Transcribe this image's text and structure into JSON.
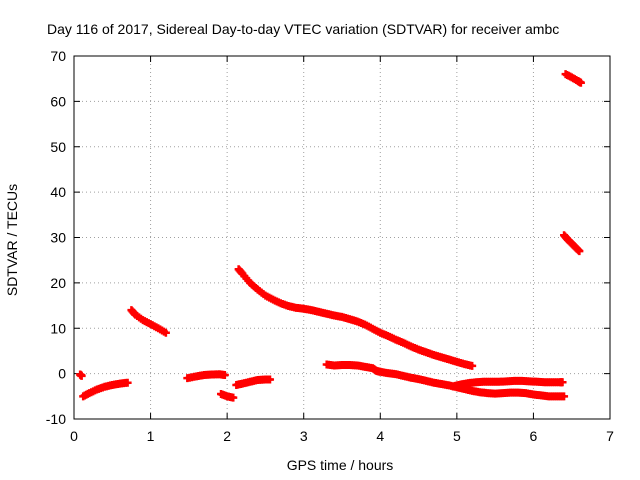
{
  "chart_data": {
    "type": "scatter",
    "title": "Day 116 of 2017, Sidereal Day-to-day VTEC variation (SDTVAR) for receiver ambc",
    "xlabel": "GPS time / hours",
    "ylabel": "SDTVAR / TECUs",
    "xlim": [
      0,
      7
    ],
    "ylim": [
      -10,
      70
    ],
    "xticks": [
      "0",
      "1",
      "2",
      "3",
      "4",
      "5",
      "6",
      "7"
    ],
    "yticks": [
      "-10",
      "0",
      "10",
      "20",
      "30",
      "40",
      "50",
      "60",
      "70"
    ],
    "grid": true,
    "marker": "plus",
    "color": "#ff0000",
    "series": [
      {
        "name": "seg1",
        "points": [
          [
            0.08,
            -0.2
          ],
          [
            0.1,
            -0.5
          ]
        ]
      },
      {
        "name": "seg2",
        "points": [
          [
            0.12,
            -5
          ],
          [
            0.2,
            -4.3
          ],
          [
            0.3,
            -3.5
          ],
          [
            0.4,
            -2.9
          ],
          [
            0.5,
            -2.5
          ],
          [
            0.6,
            -2.2
          ],
          [
            0.7,
            -2.0
          ]
        ]
      },
      {
        "name": "seg3",
        "points": [
          [
            0.75,
            14
          ],
          [
            0.8,
            13
          ],
          [
            0.9,
            11.8
          ],
          [
            1.0,
            10.9
          ],
          [
            1.1,
            10.0
          ],
          [
            1.2,
            9.0
          ]
        ]
      },
      {
        "name": "seg4",
        "points": [
          [
            1.48,
            -1.0
          ],
          [
            1.6,
            -0.6
          ],
          [
            1.7,
            -0.3
          ],
          [
            1.8,
            -0.2
          ],
          [
            1.9,
            -0.15
          ],
          [
            1.97,
            -0.3
          ]
        ]
      },
      {
        "name": "seg5",
        "points": [
          [
            1.92,
            -4.5
          ],
          [
            2.0,
            -5.0
          ],
          [
            2.08,
            -5.3
          ]
        ]
      },
      {
        "name": "seg6",
        "points": [
          [
            2.12,
            -2.5
          ],
          [
            2.2,
            -2.2
          ],
          [
            2.3,
            -1.8
          ],
          [
            2.4,
            -1.4
          ],
          [
            2.5,
            -1.3
          ],
          [
            2.56,
            -1.3
          ]
        ]
      },
      {
        "name": "seg7",
        "points": [
          [
            2.15,
            23
          ],
          [
            2.2,
            22
          ],
          [
            2.3,
            20
          ],
          [
            2.4,
            18.5
          ],
          [
            2.5,
            17.2
          ],
          [
            2.6,
            16.3
          ],
          [
            2.7,
            15.5
          ],
          [
            2.8,
            14.9
          ],
          [
            2.9,
            14.5
          ],
          [
            3.0,
            14.3
          ],
          [
            3.1,
            14.0
          ],
          [
            3.2,
            13.6
          ],
          [
            3.3,
            13.2
          ],
          [
            3.4,
            12.8
          ],
          [
            3.5,
            12.5
          ],
          [
            3.6,
            12.0
          ],
          [
            3.7,
            11.5
          ],
          [
            3.8,
            10.8
          ],
          [
            3.9,
            9.9
          ],
          [
            4.0,
            9.0
          ],
          [
            4.1,
            8.3
          ],
          [
            4.2,
            7.5
          ],
          [
            4.3,
            6.8
          ],
          [
            4.4,
            6.0
          ],
          [
            4.5,
            5.3
          ],
          [
            4.6,
            4.7
          ],
          [
            4.7,
            4.1
          ],
          [
            4.8,
            3.6
          ],
          [
            4.9,
            3.1
          ],
          [
            5.0,
            2.6
          ],
          [
            5.1,
            2.1
          ],
          [
            5.2,
            1.7
          ]
        ]
      },
      {
        "name": "seg8",
        "points": [
          [
            3.3,
            2.0
          ],
          [
            3.4,
            1.8
          ],
          [
            3.5,
            1.9
          ],
          [
            3.6,
            1.9
          ],
          [
            3.7,
            1.8
          ],
          [
            3.8,
            1.5
          ],
          [
            3.9,
            1.2
          ],
          [
            3.95,
            0.6
          ],
          [
            4.0,
            0.4
          ],
          [
            4.1,
            0.1
          ],
          [
            4.2,
            -0.1
          ],
          [
            4.3,
            -0.5
          ],
          [
            4.4,
            -0.9
          ],
          [
            4.5,
            -1.2
          ],
          [
            4.6,
            -1.6
          ],
          [
            4.7,
            -2.0
          ],
          [
            4.8,
            -2.3
          ],
          [
            4.9,
            -2.6
          ],
          [
            5.0,
            -3.0
          ],
          [
            5.1,
            -3.4
          ],
          [
            5.2,
            -3.8
          ],
          [
            5.3,
            -4.1
          ],
          [
            5.4,
            -4.3
          ],
          [
            5.5,
            -4.4
          ],
          [
            5.6,
            -4.3
          ],
          [
            5.7,
            -4.2
          ],
          [
            5.8,
            -4.2
          ],
          [
            5.9,
            -4.3
          ],
          [
            6.0,
            -4.6
          ],
          [
            6.1,
            -4.8
          ],
          [
            6.2,
            -5.0
          ],
          [
            6.3,
            -5.0
          ],
          [
            6.4,
            -5.0
          ]
        ]
      },
      {
        "name": "seg9",
        "points": [
          [
            4.95,
            -2.8
          ],
          [
            5.05,
            -2.4
          ],
          [
            5.15,
            -2.1
          ],
          [
            5.25,
            -1.9
          ],
          [
            5.35,
            -1.8
          ],
          [
            5.45,
            -1.8
          ],
          [
            5.55,
            -1.8
          ],
          [
            5.65,
            -1.7
          ],
          [
            5.75,
            -1.6
          ],
          [
            5.85,
            -1.6
          ],
          [
            5.95,
            -1.7
          ],
          [
            6.05,
            -1.8
          ],
          [
            6.15,
            -1.9
          ],
          [
            6.25,
            -1.9
          ],
          [
            6.35,
            -1.9
          ],
          [
            6.38,
            -1.9
          ]
        ]
      },
      {
        "name": "seg10",
        "points": [
          [
            6.4,
            30.5
          ],
          [
            6.45,
            29.5
          ],
          [
            6.5,
            28.7
          ],
          [
            6.55,
            27.8
          ],
          [
            6.6,
            27.0
          ]
        ]
      },
      {
        "name": "seg11",
        "points": [
          [
            6.42,
            66
          ],
          [
            6.5,
            65.3
          ],
          [
            6.58,
            64.5
          ],
          [
            6.62,
            64.1
          ]
        ]
      }
    ]
  }
}
